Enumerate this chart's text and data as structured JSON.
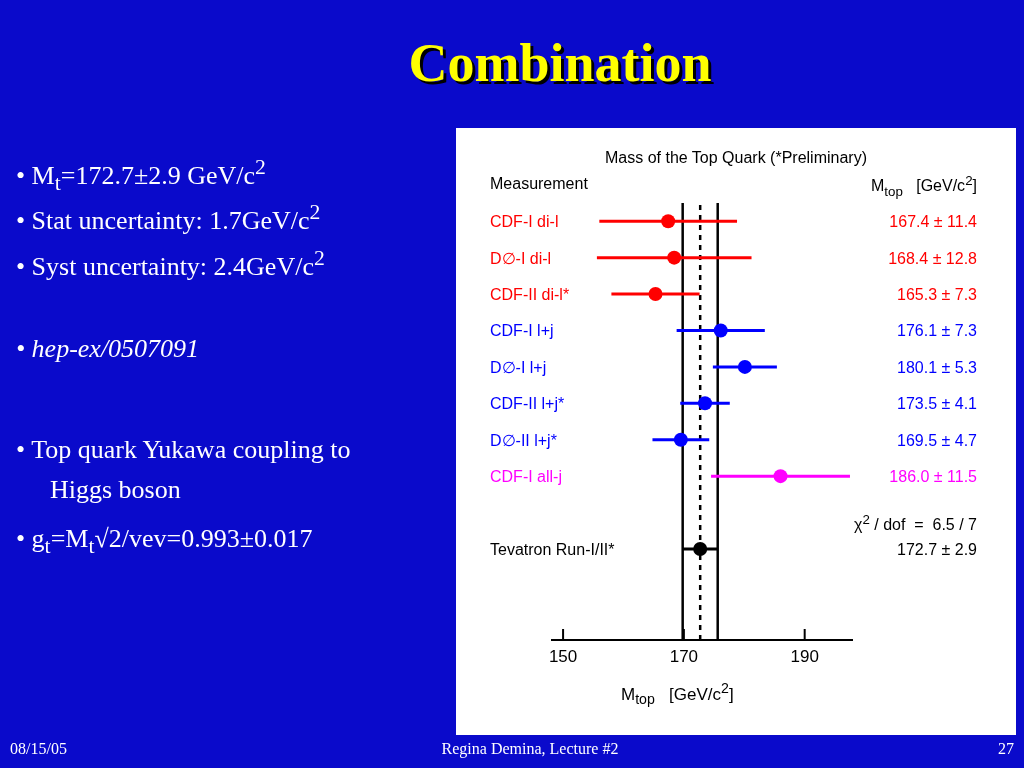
{
  "chart_data": {
    "type": "scatter",
    "orientation": "horizontal",
    "title": "Combination",
    "subtitle": "Mass of the Top Quark (*Preliminary)",
    "xlabel": "M$_{top}$   [GeV/c$^{2}$]",
    "categories": [
      "CDF-I di-l",
      "D∅-I di-l",
      "CDF-II di-l*",
      "CDF-I l+j",
      "D∅-I l+j",
      "CDF-II l+j*",
      "D∅-II l+j*",
      "CDF-I all-j",
      null,
      "Tevatron Run-I/II*"
    ],
    "values": [
      167.4,
      168.4,
      165.3,
      176.1,
      180.1,
      173.5,
      169.5,
      186.0,
      null,
      172.7
    ],
    "errors": [
      11.4,
      12.8,
      7.3,
      7.3,
      5.3,
      4.1,
      4.7,
      11.5,
      null,
      2.9
    ],
    "colors": [
      "#ff0000",
      "#ff0000",
      "#ff0000",
      "#0000ff",
      "#0000ff",
      "#0000ff",
      "#0000ff",
      "#ff00ff",
      null,
      "#000000"
    ],
    "value_labels": [
      "167.4 ± 11.4",
      "168.4 ± 12.8",
      "165.3 ± 7.3",
      "176.1 ± 7.3",
      "180.1 ± 5.3",
      "173.5 ± 4.1",
      "169.5 ± 4.7",
      "186.0 ± 11.5",
      null,
      "172.7 ± 2.9"
    ],
    "xlim": [
      148,
      198
    ],
    "xticks": [
      150,
      170,
      190
    ],
    "marker": "circle",
    "ref_lines": [
      {
        "axis": "x",
        "value": 169.8,
        "color": "#000000",
        "line_style": "solid"
      },
      {
        "axis": "x",
        "value": 175.6,
        "color": "#000000",
        "line_style": "solid"
      },
      {
        "axis": "x",
        "value": 172.7,
        "color": "#000000",
        "line_style": "dashed"
      }
    ],
    "annotations": [
      "• M$_{t}$=172.7±2.9 GeV/c$^{2}$",
      "• Stat uncertainty: 1.7GeV/c$^{2}$",
      "• Syst uncertainty: 2.4GeV/c$^{2}$",
      "• hep-ex/0507091",
      "• Top quark Yukawa coupling to Higgs boson",
      "• g$_{t}$=M$_{t}$√2/vev=0.993±0.017",
      "08/15/05",
      "Regina Demina, Lecture #2",
      "27",
      "Measurement",
      "M$_{top}$   [GeV/c$^{2}$]",
      "χ$^{2}$ / dof  =  6.5 / 7"
    ]
  }
}
